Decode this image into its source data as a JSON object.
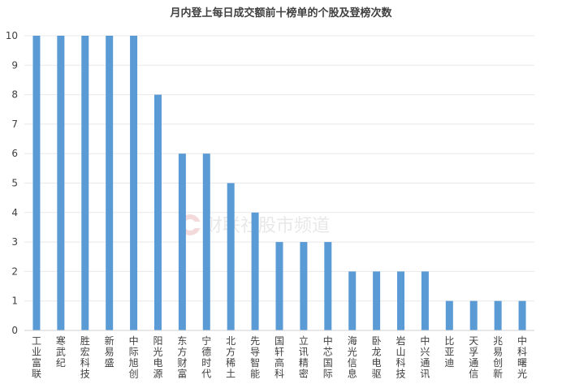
{
  "chart_data": {
    "type": "bar",
    "title": "月内登上每日成交额前十榜单的个股及登榜次数",
    "xlabel": "",
    "ylabel": "",
    "ylim": [
      0,
      10
    ],
    "yticks": [
      0,
      1,
      2,
      3,
      4,
      5,
      6,
      7,
      8,
      9,
      10
    ],
    "grid": true,
    "legend": "none",
    "categories": [
      "工业富联",
      "寒武纪",
      "胜宏科技",
      "新易盛",
      "中际旭创",
      "阳光电源",
      "东方财富",
      "宁德时代",
      "北方稀土",
      "先导智能",
      "国轩高科",
      "立讯精密",
      "中芯国际",
      "海光信息",
      "卧龙电驱",
      "岩山科技",
      "中兴通讯",
      "比亚迪",
      "天孚通信",
      "兆易创新",
      "中科曙光"
    ],
    "values": [
      10,
      10,
      10,
      10,
      10,
      8,
      6,
      6,
      5,
      4,
      3,
      3,
      3,
      2,
      2,
      2,
      2,
      1,
      1,
      1,
      1
    ],
    "colors": {
      "bar": "#5b9bd5",
      "grid": "#e8e8e8",
      "text": "#404040"
    }
  },
  "watermark": {
    "text": "财联社股市频道",
    "logo_icon": "cls-logo-icon"
  }
}
